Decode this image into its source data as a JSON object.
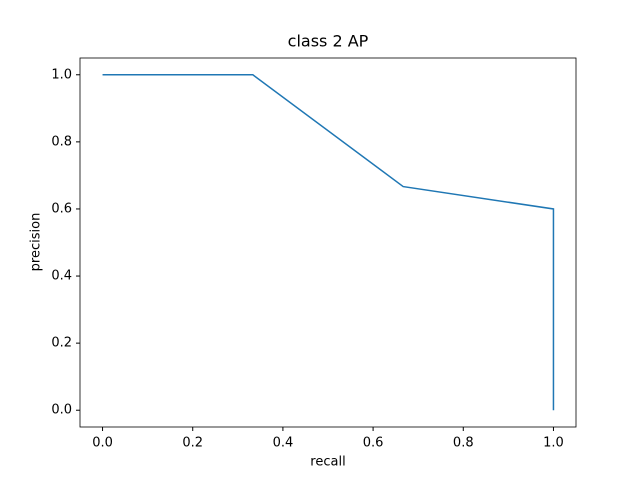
{
  "chart_data": {
    "type": "line",
    "title": "class 2 AP",
    "xlabel": "recall",
    "ylabel": "precision",
    "x": [
      0.0,
      0.3333,
      0.6667,
      1.0,
      1.0
    ],
    "series": [
      {
        "name": "precision",
        "color": "#1f77b4",
        "values": [
          1.0,
          1.0,
          0.6667,
          0.6,
          0.0
        ]
      }
    ],
    "xlim": [
      -0.05,
      1.05
    ],
    "ylim": [
      -0.05,
      1.05
    ],
    "xticks": [
      {
        "value": 0,
        "label": "0.0"
      },
      0.2,
      0.4,
      0.6,
      0.8,
      {
        "value": 1,
        "label": "1.0"
      }
    ],
    "yticks": [
      {
        "value": 0,
        "label": "0.0"
      },
      0.2,
      0.4,
      0.6,
      0.8,
      {
        "value": 1,
        "label": "1.0"
      }
    ],
    "grid": false
  }
}
